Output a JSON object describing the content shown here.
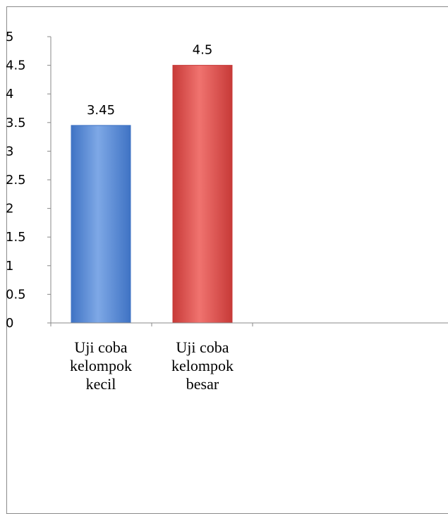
{
  "chart_data": {
    "type": "bar",
    "categories": [
      [
        "Uji coba",
        "kelompok",
        "kecil"
      ],
      [
        "Uji coba",
        "kelompok",
        "besar"
      ]
    ],
    "values": [
      3.45,
      4.5
    ],
    "value_labels": [
      "3.45",
      "4.5"
    ],
    "bar_colors": [
      "#3f73c4",
      "#c73a38"
    ],
    "bar_colors_light": [
      "#7ea8e6",
      "#f0736f"
    ],
    "ylim": [
      0,
      5
    ],
    "yticks": [
      "0",
      "0.5",
      "1",
      "1.5",
      "2",
      "2.5",
      "3",
      "3.5",
      "4",
      "4.5",
      "5"
    ],
    "grid": false,
    "legend": "none"
  }
}
